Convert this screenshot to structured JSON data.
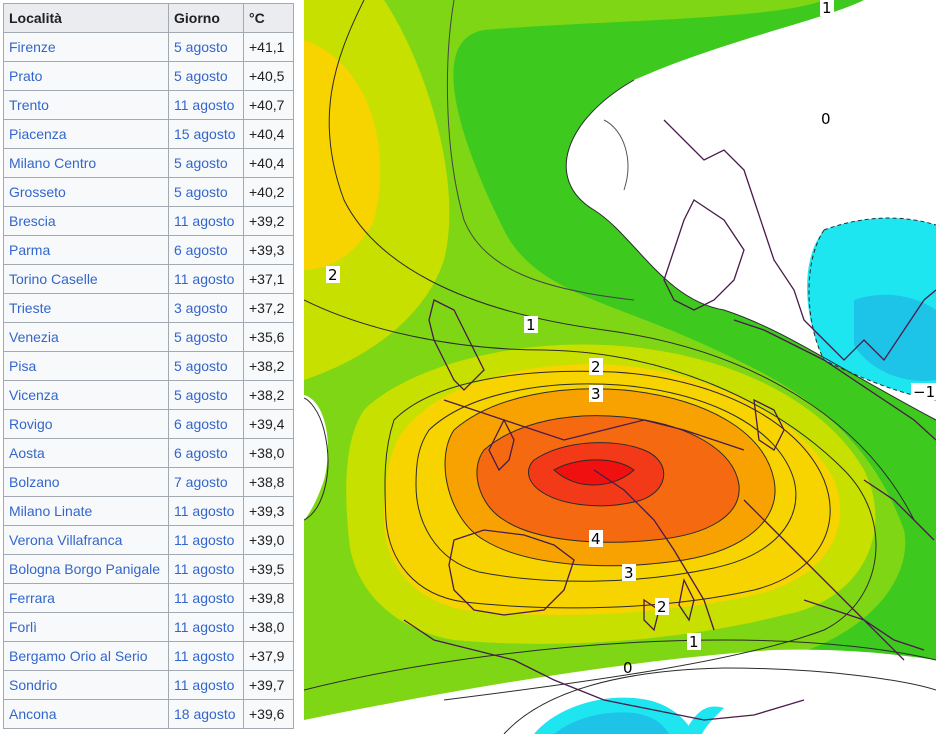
{
  "table": {
    "headers": [
      "Località",
      "Giorno",
      "°C"
    ],
    "rows": [
      [
        "Firenze",
        "5 agosto",
        "+41,1"
      ],
      [
        "Prato",
        "5 agosto",
        "+40,5"
      ],
      [
        "Trento",
        "11 agosto",
        "+40,7"
      ],
      [
        "Piacenza",
        "15 agosto",
        "+40,4"
      ],
      [
        "Milano Centro",
        "5 agosto",
        "+40,4"
      ],
      [
        "Grosseto",
        "5 agosto",
        "+40,2"
      ],
      [
        "Brescia",
        "11 agosto",
        "+39,2"
      ],
      [
        "Parma",
        "6 agosto",
        "+39,3"
      ],
      [
        "Torino Caselle",
        "11 agosto",
        "+37,1"
      ],
      [
        "Trieste",
        "3 agosto",
        "+37,2"
      ],
      [
        "Venezia",
        "5 agosto",
        "+35,6"
      ],
      [
        "Pisa",
        "5 agosto",
        "+38,2"
      ],
      [
        "Vicenza",
        "5 agosto",
        "+38,2"
      ],
      [
        "Rovigo",
        "6 agosto",
        "+39,4"
      ],
      [
        "Aosta",
        "6 agosto",
        "+38,0"
      ],
      [
        "Bolzano",
        "7 agosto",
        "+38,8"
      ],
      [
        "Milano Linate",
        "11 agosto",
        "+39,3"
      ],
      [
        "Verona Villafranca",
        "11 agosto",
        "+39,0"
      ],
      [
        "Bologna Borgo Panigale",
        "11 agosto",
        "+39,5"
      ],
      [
        "Ferrara",
        "11 agosto",
        "+39,8"
      ],
      [
        "Forlì",
        "11 agosto",
        "+38,0"
      ],
      [
        "Bergamo Orio al Serio",
        "11 agosto",
        "+37,9"
      ],
      [
        "Sondrio",
        "11 agosto",
        "+39,7"
      ],
      [
        "Ancona",
        "18 agosto",
        "+39,6"
      ]
    ]
  },
  "map": {
    "contour_labels": [
      "1",
      "0",
      "2",
      "1",
      "2",
      "3",
      "4",
      "3",
      "2",
      "1",
      "0",
      "−1"
    ]
  }
}
